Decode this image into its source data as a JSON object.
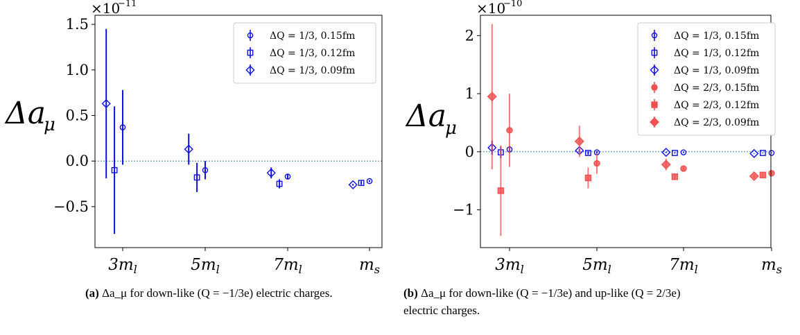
{
  "captions": {
    "a": {
      "label": "(a)",
      "text": "Δa_μ for down-like (Q = −1/3e) electric charges."
    },
    "b": {
      "label": "(b)",
      "text_line1": "Δa_μ for down-like (Q = −1/3e) and up-like (Q = 2/3e)",
      "text_line2": "electric charges."
    }
  },
  "colors": {
    "down": "#1010e0",
    "up": "#f05050",
    "zero_line": "#1f77b4"
  },
  "chart_data": [
    {
      "id": "a",
      "type": "scatter",
      "ylabel": "Δa_μ",
      "scale_label": "×10⁻¹¹",
      "categories": [
        "3m_l",
        "5m_l",
        "7m_l",
        "m_s"
      ],
      "ylim": [
        -0.95,
        1.6
      ],
      "yticks": [
        -0.5,
        0.0,
        0.5,
        1.0,
        1.5
      ],
      "ytick_labels": [
        "−0.5",
        "0.0",
        "0.5",
        "1.0",
        "1.5"
      ],
      "zero_line": true,
      "legend_position": "top-right",
      "series": [
        {
          "name": "ΔQ = 1/3, 0.15fm",
          "marker": "circle",
          "color": "down",
          "offset": 0.0,
          "values": [
            0.37,
            -0.1,
            -0.17,
            -0.22
          ],
          "errors": [
            0.41,
            0.1,
            0.03,
            0.01
          ]
        },
        {
          "name": "ΔQ = 1/3, 0.12fm",
          "marker": "square",
          "color": "down",
          "offset": -0.1,
          "values": [
            -0.1,
            -0.18,
            -0.25,
            -0.24
          ],
          "errors": [
            0.7,
            0.16,
            0.05,
            0.02
          ]
        },
        {
          "name": "ΔQ = 1/3, 0.09fm",
          "marker": "diamond",
          "color": "down",
          "offset": -0.2,
          "values": [
            0.63,
            0.13,
            -0.13,
            -0.26
          ],
          "errors": [
            0.82,
            0.17,
            0.06,
            0.01
          ]
        }
      ]
    },
    {
      "id": "b",
      "type": "scatter",
      "ylabel": "Δa_μ",
      "scale_label": "×10⁻¹⁰",
      "categories": [
        "3m_l",
        "5m_l",
        "7m_l",
        "m_s"
      ],
      "ylim": [
        -1.65,
        2.35
      ],
      "yticks": [
        -1,
        0,
        1,
        2
      ],
      "ytick_labels": [
        "−1",
        "0",
        "1",
        "2"
      ],
      "zero_line": true,
      "legend_position": "top-right",
      "series": [
        {
          "name": "ΔQ = 1/3, 0.15fm",
          "marker": "circle",
          "color": "down",
          "offset": 0.0,
          "values": [
            0.04,
            -0.01,
            -0.01,
            -0.02
          ],
          "errors": [
            0.06,
            0.02,
            0.01,
            0.005
          ]
        },
        {
          "name": "ΔQ = 1/3, 0.12fm",
          "marker": "square",
          "color": "down",
          "offset": -0.1,
          "values": [
            -0.01,
            -0.02,
            -0.02,
            -0.02
          ],
          "errors": [
            0.1,
            0.03,
            0.01,
            0.005
          ]
        },
        {
          "name": "ΔQ = 1/3, 0.09fm",
          "marker": "diamond",
          "color": "down",
          "offset": -0.2,
          "values": [
            0.07,
            0.02,
            -0.01,
            -0.03
          ],
          "errors": [
            0.12,
            0.03,
            0.01,
            0.005
          ]
        },
        {
          "name": "ΔQ = 2/3, 0.15fm",
          "marker": "circle",
          "color": "up",
          "offset": 0.0,
          "filled": true,
          "values": [
            0.37,
            -0.2,
            -0.29,
            -0.37
          ],
          "errors": [
            0.63,
            0.18,
            0.05,
            0.03
          ]
        },
        {
          "name": "ΔQ = 2/3, 0.12fm",
          "marker": "square",
          "color": "up",
          "offset": -0.1,
          "filled": true,
          "values": [
            -0.67,
            -0.45,
            -0.43,
            -0.4
          ],
          "errors": [
            0.78,
            0.18,
            0.05,
            0.03
          ]
        },
        {
          "name": "ΔQ = 2/3, 0.09fm",
          "marker": "diamond",
          "color": "up",
          "offset": -0.2,
          "filled": true,
          "values": [
            0.95,
            0.18,
            -0.22,
            -0.42
          ],
          "errors": [
            1.25,
            0.27,
            0.1,
            0.03
          ]
        }
      ]
    }
  ]
}
